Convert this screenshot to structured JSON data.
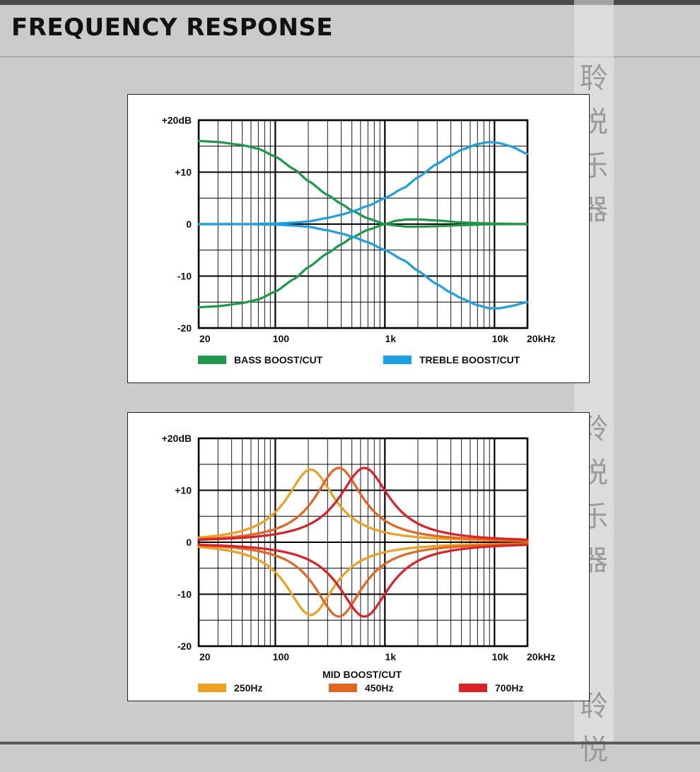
{
  "page": {
    "title": "FREQUENCY RESPONSE"
  },
  "watermark": {
    "chars": [
      "聆",
      "悦",
      "乐",
      "器"
    ]
  },
  "colors": {
    "bass": "#1a9a48",
    "treble": "#1aa0e4",
    "mid250": "#f0a01e",
    "mid450": "#e8641e",
    "mid700": "#e01e26",
    "grid": "#000000"
  },
  "chart_data": [
    {
      "type": "line",
      "title": "",
      "xlabel": "",
      "ylabel": "",
      "x_scale": "log",
      "xlim": [
        20,
        20000
      ],
      "ylim": [
        -20,
        20
      ],
      "x_ticks": [
        {
          "value": 20,
          "label": "20"
        },
        {
          "value": 100,
          "label": "100"
        },
        {
          "value": 1000,
          "label": "1k"
        },
        {
          "value": 10000,
          "label": "10k"
        },
        {
          "value": 20000,
          "label": "20kHz"
        }
      ],
      "y_ticks": [
        {
          "value": 20,
          "label": "+20dB"
        },
        {
          "value": 10,
          "label": "+10"
        },
        {
          "value": 0,
          "label": "0"
        },
        {
          "value": -10,
          "label": "-10"
        },
        {
          "value": -20,
          "label": "-20"
        }
      ],
      "grid": true,
      "legend": [
        {
          "label": "BASS BOOST/CUT",
          "color": "#1a9a48"
        },
        {
          "label": "TREBLE BOOST/CUT",
          "color": "#1aa0e4"
        }
      ],
      "series": [
        {
          "group": "BASS BOOST/CUT",
          "color": "#1a9a48",
          "x": [
            20,
            30,
            50,
            70,
            100,
            150,
            200,
            300,
            400,
            500,
            700,
            1000,
            1300,
            1600,
            2000,
            3000,
            5000,
            10000,
            20000
          ],
          "y": [
            16,
            15.8,
            15.2,
            14.5,
            13,
            10.5,
            8.3,
            5.6,
            3.9,
            2.6,
            1.1,
            0,
            0.7,
            0.9,
            0.9,
            0.7,
            0.3,
            0.1,
            0
          ]
        },
        {
          "group": "BASS BOOST/CUT",
          "color": "#1a9a48",
          "x": [
            20,
            30,
            50,
            70,
            100,
            150,
            200,
            300,
            400,
            500,
            700,
            1000,
            1300,
            1600,
            2000,
            3000,
            5000,
            10000,
            20000
          ],
          "y": [
            -16,
            -15.8,
            -15.2,
            -14.5,
            -13,
            -10.5,
            -8.3,
            -5.6,
            -3.9,
            -2.6,
            -1.1,
            0,
            -0.3,
            -0.5,
            -0.5,
            -0.4,
            -0.2,
            0,
            0
          ]
        },
        {
          "group": "TREBLE BOOST/CUT",
          "color": "#1aa0e4",
          "x": [
            20,
            50,
            100,
            150,
            200,
            300,
            400,
            500,
            700,
            1000,
            1500,
            2000,
            3000,
            4000,
            5000,
            7000,
            9000,
            11000,
            14000,
            20000
          ],
          "y": [
            0,
            0,
            0.1,
            0.3,
            0.5,
            1.2,
            1.8,
            2.4,
            3.5,
            5,
            7,
            9,
            11.6,
            13.2,
            14.3,
            15.4,
            15.8,
            15.6,
            15,
            13.5
          ]
        },
        {
          "group": "TREBLE BOOST/CUT",
          "color": "#1aa0e4",
          "x": [
            20,
            50,
            100,
            150,
            200,
            300,
            400,
            500,
            700,
            1000,
            1500,
            2000,
            3000,
            4000,
            5000,
            7000,
            9000,
            11000,
            14000,
            20000
          ],
          "y": [
            0,
            0,
            -0.1,
            -0.3,
            -0.5,
            -1.2,
            -1.8,
            -2.4,
            -3.5,
            -5,
            -7,
            -9,
            -11.6,
            -13.2,
            -14.3,
            -15.6,
            -16.2,
            -16.2,
            -15.8,
            -15
          ]
        }
      ]
    },
    {
      "type": "line",
      "title": "",
      "xlabel": "MID BOOST/CUT",
      "ylabel": "",
      "x_scale": "log",
      "xlim": [
        20,
        20000
      ],
      "ylim": [
        -20,
        20
      ],
      "x_ticks": [
        {
          "value": 20,
          "label": "20"
        },
        {
          "value": 100,
          "label": "100"
        },
        {
          "value": 1000,
          "label": "1k"
        },
        {
          "value": 10000,
          "label": "10k"
        },
        {
          "value": 20000,
          "label": "20kHz"
        }
      ],
      "y_ticks": [
        {
          "value": 20,
          "label": "+20dB"
        },
        {
          "value": 10,
          "label": "+10"
        },
        {
          "value": 0,
          "label": "0"
        },
        {
          "value": -10,
          "label": "-10"
        },
        {
          "value": -20,
          "label": "-20"
        }
      ],
      "grid": true,
      "legend": [
        {
          "label": "250Hz",
          "color": "#f0a01e"
        },
        {
          "label": "450Hz",
          "color": "#e8641e"
        },
        {
          "label": "700Hz",
          "color": "#e01e26"
        }
      ],
      "series": [
        {
          "name": "250Hz",
          "color": "#f0a01e",
          "center": 210,
          "gain": 14,
          "width_decades": 0.4
        },
        {
          "name": "250Hz",
          "color": "#f0a01e",
          "center": 210,
          "gain": -14,
          "width_decades": 0.4
        },
        {
          "name": "450Hz",
          "color": "#e8641e",
          "center": 380,
          "gain": 14.3,
          "width_decades": 0.4
        },
        {
          "name": "450Hz",
          "color": "#e8641e",
          "center": 380,
          "gain": -14.3,
          "width_decades": 0.4
        },
        {
          "name": "700Hz",
          "color": "#e01e26",
          "center": 650,
          "gain": 14.3,
          "width_decades": 0.42
        },
        {
          "name": "700Hz",
          "color": "#e01e26",
          "center": 650,
          "gain": -14.3,
          "width_decades": 0.42
        }
      ]
    }
  ]
}
